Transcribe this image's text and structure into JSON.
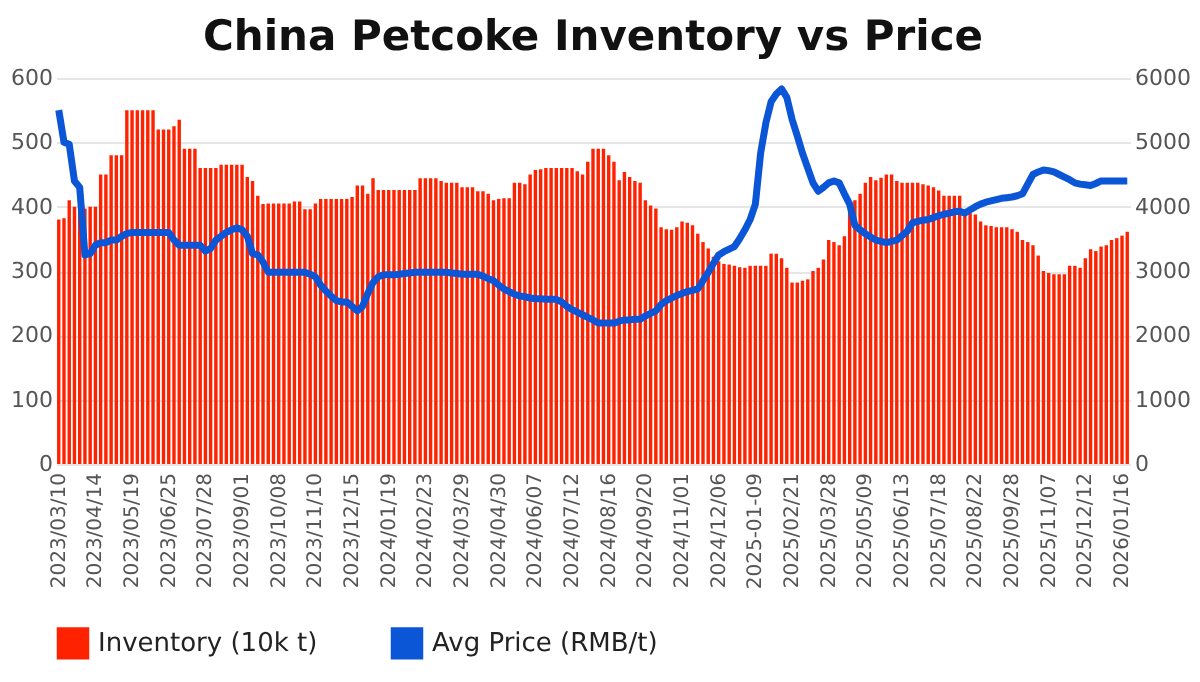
{
  "chart_data": {
    "type": "bar",
    "title": "China Petcoke Inventory vs Price",
    "categories": [
      "2023/03/10",
      null,
      null,
      null,
      null,
      null,
      null,
      "2023/04/14",
      null,
      null,
      null,
      null,
      null,
      null,
      "2023/05/19",
      null,
      null,
      null,
      null,
      null,
      null,
      "2023/06/25",
      null,
      null,
      null,
      null,
      null,
      null,
      "2023/07/28",
      null,
      null,
      null,
      null,
      null,
      null,
      "2023/09/01",
      null,
      null,
      null,
      null,
      null,
      null,
      "2023/10/08",
      null,
      null,
      null,
      null,
      null,
      null,
      "2023/11/10",
      null,
      null,
      null,
      null,
      null,
      null,
      "2023/12/15",
      null,
      null,
      null,
      null,
      null,
      null,
      "2024/01/19",
      null,
      null,
      null,
      null,
      null,
      null,
      "2024/02/23",
      null,
      null,
      null,
      null,
      null,
      null,
      "2024/03/29",
      null,
      null,
      null,
      null,
      null,
      null,
      "2024/04/30",
      null,
      null,
      null,
      null,
      null,
      null,
      "2024/06/07",
      null,
      null,
      null,
      null,
      null,
      null,
      "2024/07/12",
      null,
      null,
      null,
      null,
      null,
      null,
      "2024/08/16",
      null,
      null,
      null,
      null,
      null,
      null,
      "2024/09/20",
      null,
      null,
      null,
      null,
      null,
      null,
      "2024/11/01",
      null,
      null,
      null,
      null,
      null,
      null,
      "2024/12/06",
      null,
      null,
      null,
      null,
      null,
      null,
      "2025-01-09",
      null,
      null,
      null,
      null,
      null,
      null,
      "2025/02/21",
      null,
      null,
      null,
      null,
      null,
      null,
      "2025/03/28",
      null,
      null,
      null,
      null,
      null,
      null,
      "2025/05/09",
      null,
      null,
      null,
      null,
      null,
      null,
      "2025/06/13",
      null,
      null,
      null,
      null,
      null,
      null,
      "2025/07/18",
      null,
      null,
      null,
      null,
      null,
      null,
      "2025/08/22",
      null,
      null,
      null,
      null,
      null,
      null,
      "2025/09/28",
      null,
      null,
      null,
      null,
      null,
      null,
      "2025/11/07",
      null,
      null,
      null,
      null,
      null,
      null,
      "2025/12/12",
      null,
      null,
      null,
      null,
      null,
      null,
      "2026/01/16",
      null
    ],
    "series": [
      {
        "name": "Inventory (10k t)",
        "color": "#ff2200",
        "values": [
          380,
          382,
          410,
          400,
          400,
          397,
          400,
          400,
          450,
          450,
          480,
          480,
          480,
          550,
          550,
          550,
          550,
          550,
          550,
          520,
          520,
          520,
          525,
          535,
          490,
          490,
          490,
          460,
          460,
          460,
          460,
          465,
          465,
          465,
          465,
          465,
          446,
          440,
          417,
          404,
          405,
          405,
          405,
          405,
          405,
          408,
          408,
          396,
          396,
          405,
          412,
          412,
          412,
          412,
          412,
          412,
          415,
          433,
          433,
          420,
          444,
          426,
          426,
          426,
          426,
          426,
          426,
          426,
          426,
          444,
          444,
          444,
          444,
          440,
          437,
          437,
          437,
          430,
          430,
          430,
          424,
          424,
          420,
          410,
          412,
          413,
          413,
          437,
          437,
          435,
          450,
          457,
          458,
          460,
          460,
          460,
          460,
          460,
          460,
          455,
          450,
          470,
          490,
          490,
          490,
          480,
          470,
          441,
          454,
          446,
          440,
          437,
          410,
          402,
          397,
          368,
          365,
          364,
          368,
          377,
          375,
          371,
          358,
          345,
          335,
          322,
          315,
          311,
          310,
          308,
          306,
          305,
          308,
          308,
          308,
          308,
          327,
          327,
          320,
          305,
          282,
          282,
          285,
          287,
          300,
          305,
          318,
          348,
          345,
          340,
          354,
          397,
          410,
          420,
          437,
          446,
          441,
          445,
          450,
          450,
          440,
          437,
          437,
          437,
          437,
          435,
          433,
          430,
          425,
          417,
          417,
          417,
          417,
          395,
          390,
          388,
          377,
          371,
          370,
          368,
          368,
          368,
          365,
          361,
          348,
          345,
          340,
          324,
          300,
          297,
          295,
          295,
          295,
          308,
          308,
          305,
          320,
          334,
          331,
          338,
          340,
          348,
          351,
          355,
          361
        ]
      },
      {
        "name": "Avg Price (RMB/t)",
        "color": "#0a56d6",
        "type": "line",
        "axis": "y2",
        "values": [
          5500,
          5000,
          4970,
          4400,
          4300,
          3250,
          3270,
          3400,
          3440,
          3440,
          3480,
          3480,
          3540,
          3580,
          3600,
          3600,
          3600,
          3600,
          3600,
          3600,
          3600,
          3600,
          3480,
          3400,
          3400,
          3400,
          3400,
          3400,
          3310,
          3350,
          3480,
          3540,
          3600,
          3640,
          3670,
          3640,
          3540,
          3270,
          3250,
          3140,
          2980,
          2980,
          2980,
          2980,
          2980,
          2980,
          2980,
          2980,
          2950,
          2910,
          2780,
          2690,
          2610,
          2540,
          2520,
          2520,
          2450,
          2380,
          2450,
          2650,
          2820,
          2910,
          2940,
          2940,
          2940,
          2950,
          2960,
          2970,
          2980,
          2980,
          2980,
          2980,
          2980,
          2980,
          2980,
          2970,
          2960,
          2950,
          2950,
          2950,
          2950,
          2920,
          2880,
          2850,
          2780,
          2720,
          2680,
          2640,
          2610,
          2600,
          2580,
          2570,
          2570,
          2560,
          2560,
          2560,
          2520,
          2450,
          2400,
          2360,
          2320,
          2280,
          2240,
          2190,
          2190,
          2190,
          2190,
          2220,
          2240,
          2240,
          2250,
          2250,
          2300,
          2340,
          2380,
          2480,
          2540,
          2580,
          2620,
          2650,
          2680,
          2700,
          2720,
          2850,
          2980,
          3120,
          3250,
          3300,
          3340,
          3380,
          3500,
          3640,
          3800,
          4040,
          4830,
          5300,
          5630,
          5750,
          5830,
          5700,
          5360,
          5100,
          4830,
          4600,
          4370,
          4240,
          4300,
          4370,
          4400,
          4370,
          4200,
          4040,
          3710,
          3640,
          3580,
          3530,
          3480,
          3460,
          3440,
          3460,
          3480,
          3550,
          3620,
          3750,
          3770,
          3790,
          3800,
          3830,
          3860,
          3880,
          3900,
          3920,
          3930,
          3900,
          3950,
          4000,
          4040,
          4070,
          4090,
          4110,
          4130,
          4140,
          4150,
          4170,
          4200,
          4350,
          4500,
          4540,
          4570,
          4560,
          4540,
          4500,
          4460,
          4420,
          4370,
          4350,
          4340,
          4330,
          4360,
          4400,
          4400,
          4400,
          4400,
          4400,
          4400
        ]
      }
    ],
    "ylim": [
      0,
      600
    ],
    "yticks": [
      0,
      100,
      200,
      300,
      400,
      500,
      600
    ],
    "y2lim": [
      0,
      6000
    ],
    "y2ticks": [
      0,
      1000,
      2000,
      3000,
      4000,
      5000,
      6000
    ],
    "grid": "y",
    "legend": "bottom",
    "marker": "none",
    "line_style": "solid"
  }
}
